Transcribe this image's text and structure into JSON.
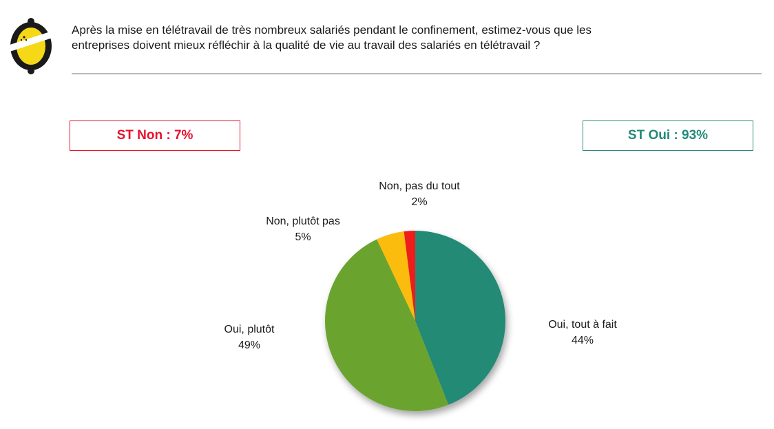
{
  "header": {
    "question_line1": "Après la mise en télétravail de très nombreux salariés pendant le confinement, estimez-vous que les",
    "question_line2": "entreprises doivent mieux réfléchir à la qualité de vie au travail des salariés en télétravail ?"
  },
  "summary": {
    "non_label": "ST Non : 7%",
    "oui_label": "ST Oui : 93%",
    "non_color": "#e8112d",
    "oui_color": "#2a8a7a"
  },
  "logo": {
    "icon": "lemon-logo-icon",
    "colors": [
      "#1a1a1a",
      "#f5d916",
      "#ffffff"
    ]
  },
  "chart_data": {
    "type": "pie",
    "title": "",
    "start_angle": "12 o'clock, clockwise",
    "slices": [
      {
        "label": "Oui, tout à fait",
        "value": 44,
        "display": "44%",
        "color": "#238a75"
      },
      {
        "label": "Oui, plutôt",
        "value": 49,
        "display": "49%",
        "color": "#6aa42f"
      },
      {
        "label": "Non, plutôt pas",
        "value": 5,
        "display": "5%",
        "color": "#fbbc09"
      },
      {
        "label": "Non, pas du tout",
        "value": 2,
        "display": "2%",
        "color": "#ef1a1a"
      }
    ]
  }
}
